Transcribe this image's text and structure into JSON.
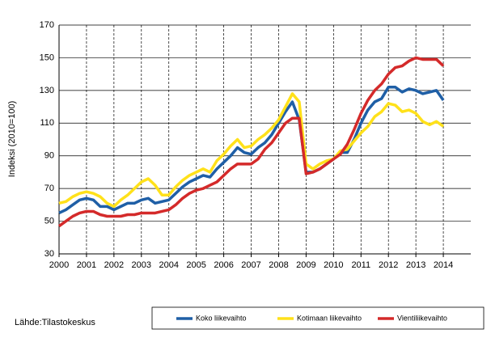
{
  "chart_data": {
    "type": "line",
    "y_label": "Indeksi (2010=100)",
    "source": "Lähde:Tilastokeskus",
    "x": [
      2000,
      2000.25,
      2000.5,
      2000.75,
      2001,
      2001.25,
      2001.5,
      2001.75,
      2002,
      2002.25,
      2002.5,
      2002.75,
      2003,
      2003.25,
      2003.5,
      2003.75,
      2004,
      2004.25,
      2004.5,
      2004.75,
      2005,
      2005.25,
      2005.5,
      2005.75,
      2006,
      2006.25,
      2006.5,
      2006.75,
      2007,
      2007.25,
      2007.5,
      2007.75,
      2008,
      2008.25,
      2008.5,
      2008.75,
      2009,
      2009.25,
      2009.5,
      2009.75,
      2010,
      2010.25,
      2010.5,
      2010.75,
      2011,
      2011.25,
      2011.5,
      2011.75,
      2012,
      2012.25,
      2012.5,
      2012.75,
      2013,
      2013.25,
      2013.5,
      2013.75,
      2014
    ],
    "series": [
      {
        "name": "Koko liikevaihto",
        "color": "#1f5fa6",
        "values": [
          55,
          57,
          60,
          63,
          64,
          63,
          59,
          59,
          57,
          59,
          61,
          61,
          63,
          64,
          61,
          62,
          63,
          67,
          71,
          74,
          76,
          78,
          77,
          82,
          86,
          90,
          95,
          92,
          91,
          95,
          98,
          103,
          110,
          117,
          123,
          112,
          80,
          80,
          82,
          85,
          88,
          92,
          92,
          100,
          110,
          118,
          123,
          125,
          132,
          132,
          129,
          131,
          130,
          128,
          129,
          130,
          124
        ]
      },
      {
        "name": "Kotimaan liikevaihto",
        "color": "#ffe11a",
        "values": [
          61,
          62,
          65,
          67,
          68,
          67,
          65,
          61,
          59,
          63,
          66,
          70,
          74,
          76,
          72,
          66,
          66,
          71,
          75,
          78,
          80,
          82,
          80,
          87,
          91,
          96,
          100,
          95,
          96,
          100,
          103,
          107,
          112,
          120,
          128,
          123,
          85,
          82,
          85,
          87,
          88,
          93,
          94,
          99,
          104,
          108,
          114,
          117,
          122,
          121,
          117,
          118,
          116,
          111,
          109,
          111,
          108
        ]
      },
      {
        "name": "Vientiliikevaihto",
        "color": "#d42a2a",
        "values": [
          47,
          50,
          53,
          55,
          56,
          56,
          54,
          53,
          53,
          53,
          54,
          54,
          55,
          55,
          55,
          56,
          57,
          60,
          64,
          67,
          69,
          70,
          72,
          74,
          78,
          82,
          85,
          85,
          85,
          88,
          94,
          98,
          104,
          110,
          113,
          113,
          79,
          80,
          82,
          85,
          88,
          91,
          97,
          106,
          116,
          124,
          130,
          134,
          140,
          144,
          145,
          148,
          150,
          149,
          149,
          149,
          145
        ]
      }
    ],
    "xlim": [
      2000,
      2015
    ],
    "xticks": [
      2000,
      2001,
      2002,
      2003,
      2004,
      2005,
      2006,
      2007,
      2008,
      2009,
      2010,
      2011,
      2012,
      2013,
      2014
    ],
    "ylim": [
      30,
      170
    ],
    "yticks": [
      30,
      50,
      70,
      90,
      110,
      130,
      150,
      170
    ],
    "grid": true
  }
}
